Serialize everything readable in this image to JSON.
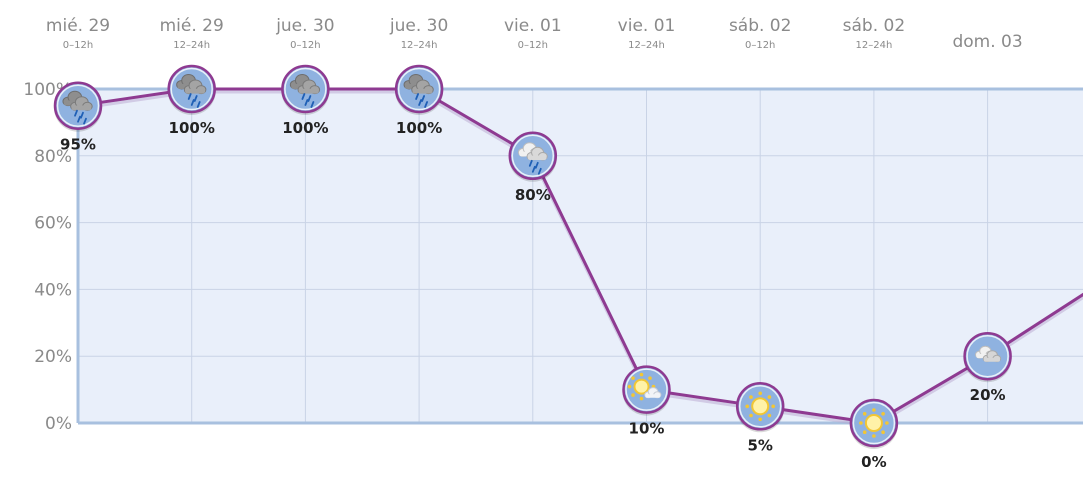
{
  "chart_data": {
    "type": "line",
    "columns": [
      {
        "day": "mié. 29",
        "period": "0–12h",
        "value": 95,
        "label": "95%",
        "icon": "heavy-rain-cloud-icon"
      },
      {
        "day": "mié. 29",
        "period": "12–24h",
        "value": 100,
        "label": "100%",
        "icon": "heavy-rain-cloud-icon"
      },
      {
        "day": "jue. 30",
        "period": "0–12h",
        "value": 100,
        "label": "100%",
        "icon": "heavy-rain-cloud-icon"
      },
      {
        "day": "jue. 30",
        "period": "12–24h",
        "value": 100,
        "label": "100%",
        "icon": "heavy-rain-cloud-icon"
      },
      {
        "day": "vie. 01",
        "period": "0–12h",
        "value": 80,
        "label": "80%",
        "icon": "rain-cloud-icon"
      },
      {
        "day": "vie. 01",
        "period": "12–24h",
        "value": 10,
        "label": "10%",
        "icon": "sun-cloud-icon"
      },
      {
        "day": "sáb. 02",
        "period": "0–12h",
        "value": 5,
        "label": "5%",
        "icon": "sun-icon"
      },
      {
        "day": "sáb. 02",
        "period": "12–24h",
        "value": 0,
        "label": "0%",
        "icon": "sun-icon"
      },
      {
        "day": "dom. 03",
        "period": "",
        "value": 20,
        "label": "20%",
        "icon": "cloud-icon"
      }
    ],
    "trailing_value": 42,
    "y_ticks": [
      "0%",
      "20%",
      "40%",
      "60%",
      "80%",
      "100%"
    ],
    "ylim": [
      0,
      100
    ],
    "grid": true,
    "colors": {
      "line": "#8e3a91",
      "plot_bg": "#e9effa",
      "grid": "#c9d3e6",
      "axis": "#a8c0df",
      "icon_bg": "#8fb2e0",
      "icon_ring": "#8e3a91"
    }
  }
}
